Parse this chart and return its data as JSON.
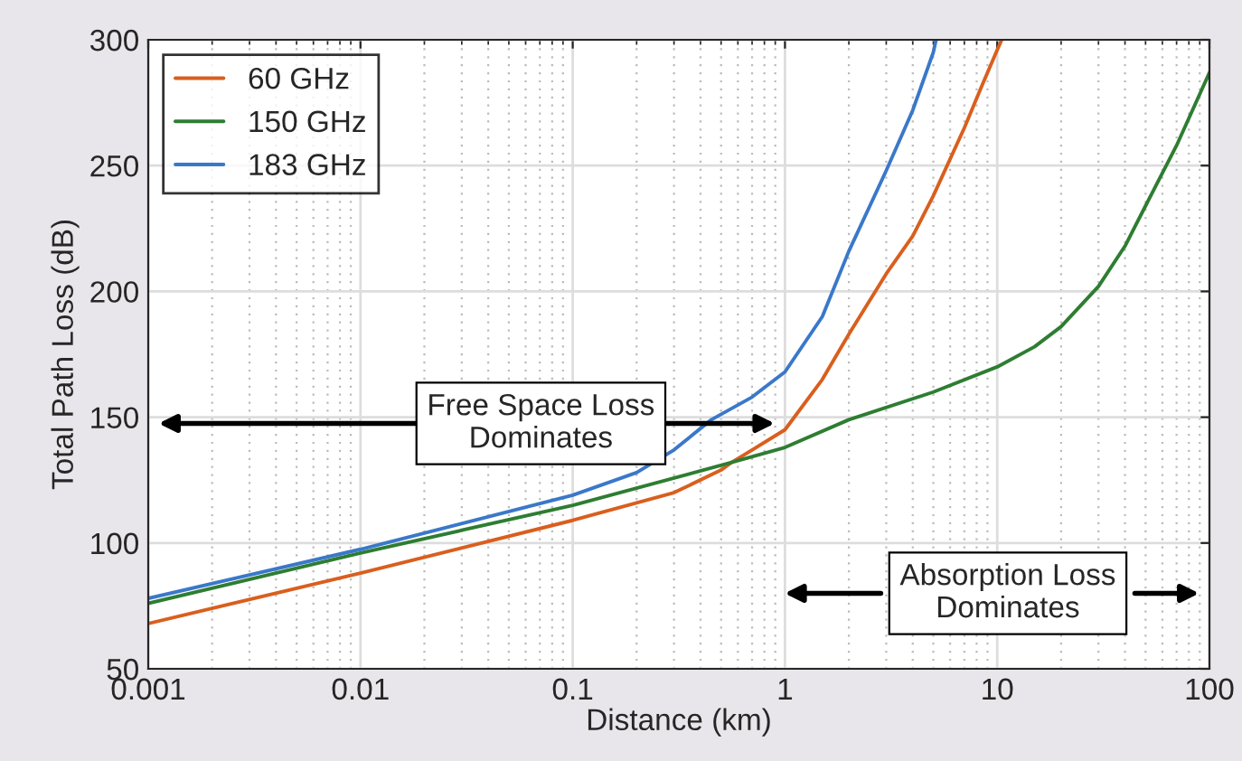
{
  "chart_data": {
    "type": "line",
    "xlabel": "Distance (km)",
    "ylabel": "Total Path Loss (dB)",
    "log": "x",
    "xlim": [
      0.001,
      100
    ],
    "xticks": [
      0.001,
      0.01,
      0.1,
      1,
      10,
      100
    ],
    "ylim": [
      50,
      300
    ],
    "yticks": [
      50,
      100,
      150,
      200,
      250,
      300
    ],
    "grid": true,
    "legend": "top left",
    "line_style": "solid",
    "marker": "none",
    "series": [
      {
        "name": "60 GHz",
        "color": "#d95f1e",
        "x": [
          0.001,
          0.01,
          0.1,
          0.3,
          0.5,
          0.56,
          0.7,
          1,
          1.5,
          2,
          3,
          4,
          5,
          7,
          8.5,
          10,
          10.5
        ],
        "values": [
          68,
          88,
          109,
          120,
          129,
          132,
          137,
          145,
          165,
          183,
          207,
          222,
          238,
          265,
          282,
          296,
          300
        ]
      },
      {
        "name": "150 GHz",
        "color": "#2e7d32",
        "x": [
          0.001,
          0.01,
          0.1,
          0.56,
          1,
          2,
          5,
          10,
          15,
          20,
          30,
          40,
          50,
          70,
          100
        ],
        "values": [
          76,
          96,
          115,
          132,
          138,
          149,
          160,
          170,
          178,
          186,
          202,
          218,
          234,
          258,
          287
        ]
      },
      {
        "name": "183 GHz",
        "color": "#3a78c9",
        "x": [
          0.001,
          0.01,
          0.1,
          0.2,
          0.3,
          0.45,
          0.7,
          1,
          1.5,
          2,
          3,
          4,
          5,
          5.15
        ],
        "values": [
          78,
          97.5,
          119,
          128,
          137,
          149,
          158,
          168,
          190,
          216,
          248,
          272,
          295,
          300
        ]
      }
    ],
    "annotations": [
      "Free Space Loss\nDominates",
      "Absorption Loss\nDominates"
    ]
  }
}
